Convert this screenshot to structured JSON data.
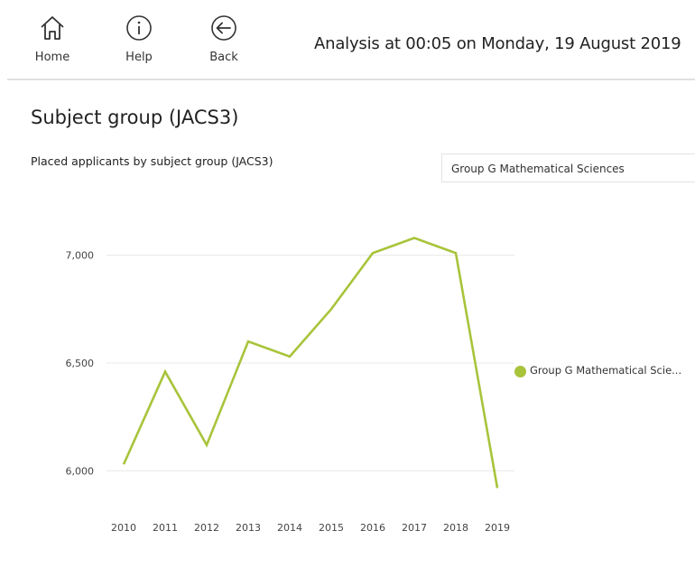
{
  "toolbar": {
    "home_label": "Home",
    "help_label": "Help",
    "back_label": "Back",
    "icons": [
      "home-icon",
      "info-icon",
      "back-arrow-icon"
    ]
  },
  "analysis_time": "Analysis at 00:05 on Monday, 19 August 2019",
  "page_title": "Subject group (JACS3)",
  "chart_title": "Placed applicants by subject group (JACS3)",
  "slicer": {
    "selected": "Group G Mathematical Sciences"
  },
  "legend": {
    "label": "Group G Mathematical Scie..."
  },
  "colors": {
    "series": "#a8c43b",
    "grid": "#e8e8e8",
    "axis_text": "#444444"
  },
  "chart_data": {
    "type": "line",
    "title": "Placed applicants by subject group (JACS3)",
    "xlabel": "",
    "ylabel": "",
    "x": [
      "2010",
      "2011",
      "2012",
      "2013",
      "2014",
      "2015",
      "2016",
      "2017",
      "2018",
      "2019"
    ],
    "series": [
      {
        "name": "Group G Mathematical Sciences",
        "values": [
          6030,
          6460,
          6120,
          6600,
          6530,
          6750,
          7010,
          7080,
          7010,
          5920
        ]
      }
    ],
    "yticks": [
      6000,
      6500,
      7000
    ],
    "ytick_labels": [
      "6,000",
      "6,500",
      "7,000"
    ],
    "ylim": [
      5880,
      7120
    ],
    "grid": true,
    "legend_position": "right"
  }
}
